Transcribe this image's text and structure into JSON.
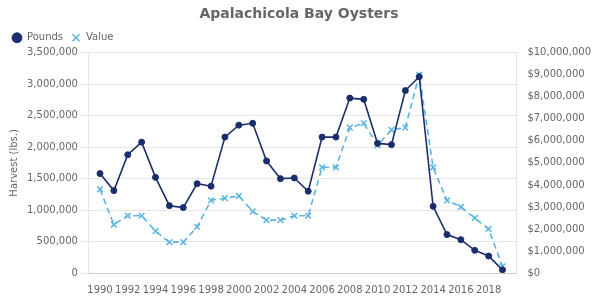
{
  "chart_data": {
    "type": "line",
    "title": "Apalachicola Bay Oysters",
    "ylabel": "Harvest (lbs.)",
    "x": [
      1990,
      1991,
      1992,
      1993,
      1994,
      1995,
      1996,
      1997,
      1998,
      1999,
      2000,
      2001,
      2002,
      2003,
      2004,
      2005,
      2006,
      2007,
      2008,
      2009,
      2010,
      2011,
      2012,
      2013,
      2014,
      2015,
      2016,
      2017,
      2018,
      2019
    ],
    "series": [
      {
        "name": "Pounds",
        "color": "#1c2d6b",
        "marker": "circle",
        "line_style": "solid",
        "values": [
          1580000,
          1310000,
          1880000,
          2080000,
          1520000,
          1070000,
          1040000,
          1420000,
          1380000,
          2160000,
          2350000,
          2380000,
          1780000,
          1500000,
          1510000,
          1300000,
          2160000,
          2160000,
          2780000,
          2760000,
          2060000,
          2040000,
          2900000,
          3120000,
          1060000,
          610000,
          530000,
          360000,
          270000,
          50000
        ]
      },
      {
        "name": "Value",
        "color": "#5ab4e0",
        "marker": "x",
        "line_style": "dashed",
        "axis": "y2",
        "values": [
          3800000,
          2200000,
          2600000,
          2600000,
          1900000,
          1400000,
          1400000,
          2100000,
          3300000,
          3400000,
          3500000,
          2800000,
          2400000,
          2400000,
          2600000,
          2600000,
          4800000,
          4800000,
          6600000,
          6800000,
          5800000,
          6500000,
          6600000,
          9000000,
          4800000,
          3300000,
          3000000,
          2500000,
          2000000,
          300000
        ]
      }
    ],
    "xlim": [
      1989.2,
      2020.0
    ],
    "xticks": [
      1990,
      1992,
      1994,
      1996,
      1998,
      2000,
      2002,
      2004,
      2006,
      2008,
      2010,
      2012,
      2014,
      2016,
      2018
    ],
    "ylim": [
      0,
      3500000
    ],
    "yticks": [
      0,
      {
        "value": 500000,
        "label": "500,000"
      },
      {
        "value": 1000000,
        "label": "1,000,000"
      },
      {
        "value": 1500000,
        "label": "1,500,000"
      },
      {
        "value": 2000000,
        "label": "2,000,000"
      },
      {
        "value": 2500000,
        "label": "2,500,000"
      },
      {
        "value": 3000000,
        "label": "3,000,000"
      },
      {
        "value": 3500000,
        "label": "3,500,000"
      }
    ],
    "y2lim": [
      0,
      10000000
    ],
    "y2ticks": [
      {
        "value": 0,
        "label": "$0"
      },
      {
        "value": 1000000,
        "label": "$1,000,000"
      },
      {
        "value": 2000000,
        "label": "$2,000,000"
      },
      {
        "value": 3000000,
        "label": "$3,000,000"
      },
      {
        "value": 4000000,
        "label": "$4,000,000"
      },
      {
        "value": 5000000,
        "label": "$5,000,000"
      },
      {
        "value": 6000000,
        "label": "$6,000,000"
      },
      {
        "value": 7000000,
        "label": "$7,000,000"
      },
      {
        "value": 8000000,
        "label": "$8,000,000"
      },
      {
        "value": 9000000,
        "label": "$9,000,000"
      },
      {
        "value": 10000000,
        "label": "$10,000,000"
      }
    ],
    "grid": "y",
    "legend": "upper left"
  }
}
